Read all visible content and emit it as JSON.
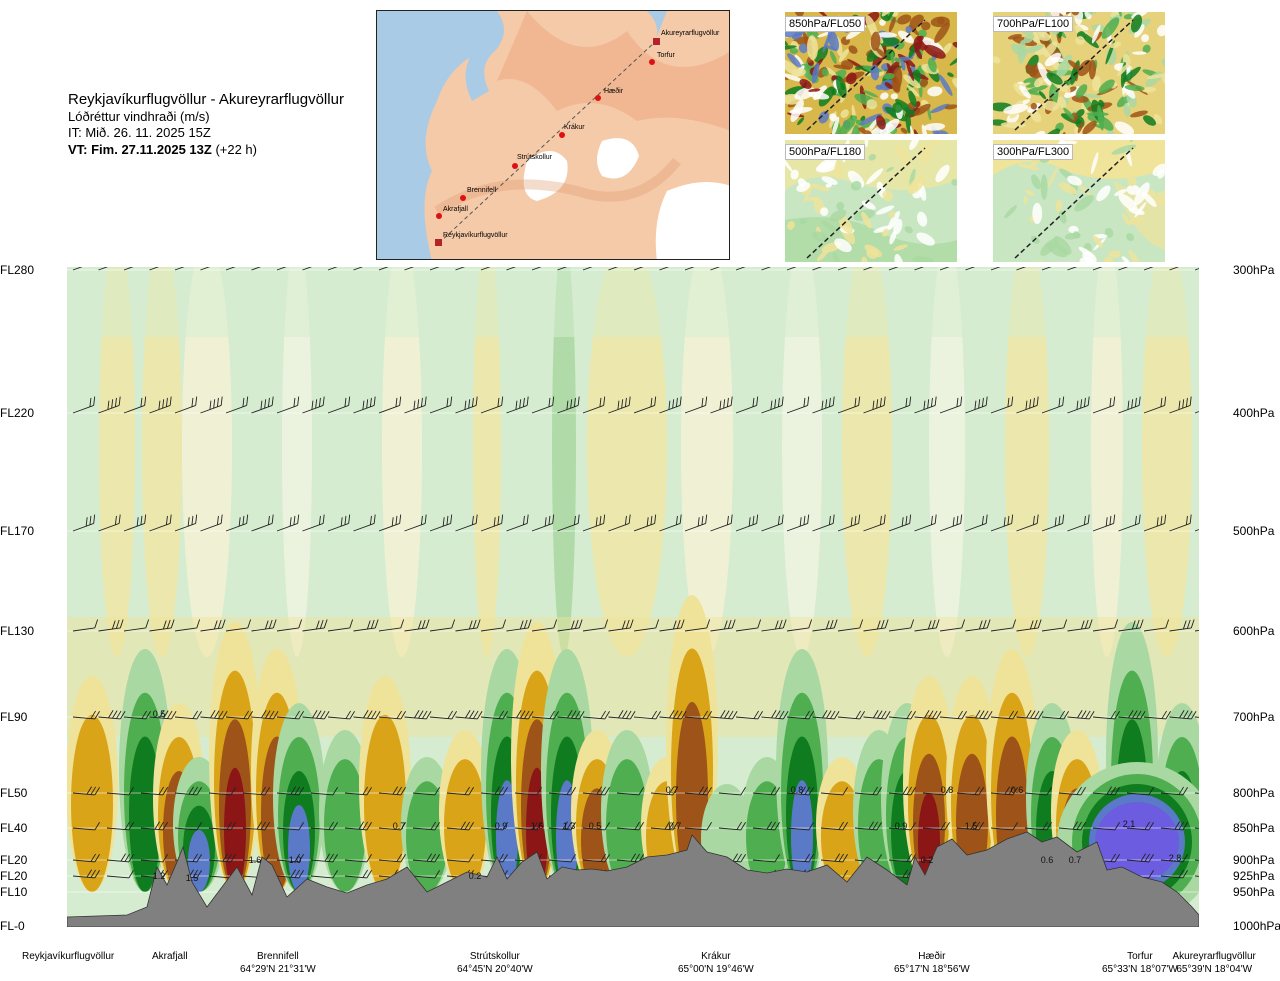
{
  "header": {
    "route": "Reykjavíkurflugvöllur - Akureyrarflugvöllur",
    "variable": "Lóðréttur vindhraði (m/s)",
    "issue_time": "IT: Mið. 26. 11. 2025 15Z",
    "valid_prefix": "VT: Fim. 27.11.2025 13Z",
    "valid_offset": "(+22 h)"
  },
  "map": {
    "waypoints": [
      "Reykjavíkurflugvöllur",
      "Akrafjall",
      "Brennifell",
      "Strútskollur",
      "Krákur",
      "Hæðir",
      "Torfur",
      "Akureyrarflugvöllur"
    ]
  },
  "mini_maps": [
    {
      "label": "850hPa/FL050"
    },
    {
      "label": "700hPa/FL100"
    },
    {
      "label": "500hPa/FL180"
    },
    {
      "label": "300hPa/FL300"
    }
  ],
  "levels": [
    {
      "fl": "FL280",
      "hpa": "300hPa"
    },
    {
      "fl": "FL220",
      "hpa": "400hPa"
    },
    {
      "fl": "FL170",
      "hpa": "500hPa"
    },
    {
      "fl": "FL130",
      "hpa": "600hPa"
    },
    {
      "fl": "FL90",
      "hpa": "700hPa"
    },
    {
      "fl": "FL50",
      "hpa": "800hPa"
    },
    {
      "fl": "FL40",
      "hpa": "850hPa"
    },
    {
      "fl": "FL20",
      "hpa": "900hPa"
    },
    {
      "fl": "FL20",
      "hpa": "925hPa"
    },
    {
      "fl": "FL10",
      "hpa": "950hPa"
    },
    {
      "fl": "FL-0",
      "hpa": "1000hPa"
    }
  ],
  "stations": [
    {
      "name": "Reykjavíkurflugvöllur",
      "coord": ""
    },
    {
      "name": "Akrafjall",
      "coord": ""
    },
    {
      "name": "Brennifell",
      "coord": "64°29'N 21°31'W"
    },
    {
      "name": "Strútskollur",
      "coord": "64°45'N 20°40'W"
    },
    {
      "name": "Krákur",
      "coord": "65°00'N 19°46'W"
    },
    {
      "name": "Hæðir",
      "coord": "65°17'N 18°56'W"
    },
    {
      "name": "Torfur",
      "coord": "65°33'N 18°07'W"
    },
    {
      "name": "Akureyrarflugvöllur",
      "coord": "65°39'N 18°04'W"
    }
  ],
  "chart_data": {
    "type": "heatmap",
    "title": "Reykjavíkurflugvöllur - Akureyrarflugvöllur",
    "subtitle": "Lóðréttur vindhraði (m/s)",
    "y_levels_hpa": [
      300,
      400,
      500,
      600,
      700,
      800,
      850,
      900,
      925,
      950,
      1000
    ],
    "y_levels_fl": [
      "FL280",
      "FL220",
      "FL170",
      "FL130",
      "FL90",
      "FL50",
      "FL40",
      "FL20",
      "FL20",
      "FL10",
      "FL-0"
    ],
    "x_stations": [
      "Reykjavíkurflugvöllur",
      "Akrafjall",
      "Brennifell",
      "Strútskollur",
      "Krákur",
      "Hæðir",
      "Torfur",
      "Akureyrarflugvöllur"
    ],
    "annotations": [
      "0.5",
      "1.2",
      "1.5",
      "1.6",
      "1.0",
      "0.7",
      "0.2",
      "0.9",
      "1.6",
      "1.3",
      "0.5",
      "0.7",
      "0.7",
      "0.8",
      "0.9",
      "0.2",
      "0.8",
      "1.5",
      "0.6",
      "0.6",
      "0.7",
      "2.1",
      "2.8"
    ],
    "colors": {
      "strong_down": "#8c1616",
      "down": "#9e5418",
      "mod_down": "#d9a418",
      "weak_down": "#efe39a",
      "neutral": "#d5ecd0",
      "weak_up": "#a9d8a2",
      "mod_up": "#4fae4f",
      "up": "#0f7d1f",
      "strong_up": "#5a79c7",
      "very_strong_up": "#6b5ce0",
      "terrain": "#808080"
    }
  }
}
